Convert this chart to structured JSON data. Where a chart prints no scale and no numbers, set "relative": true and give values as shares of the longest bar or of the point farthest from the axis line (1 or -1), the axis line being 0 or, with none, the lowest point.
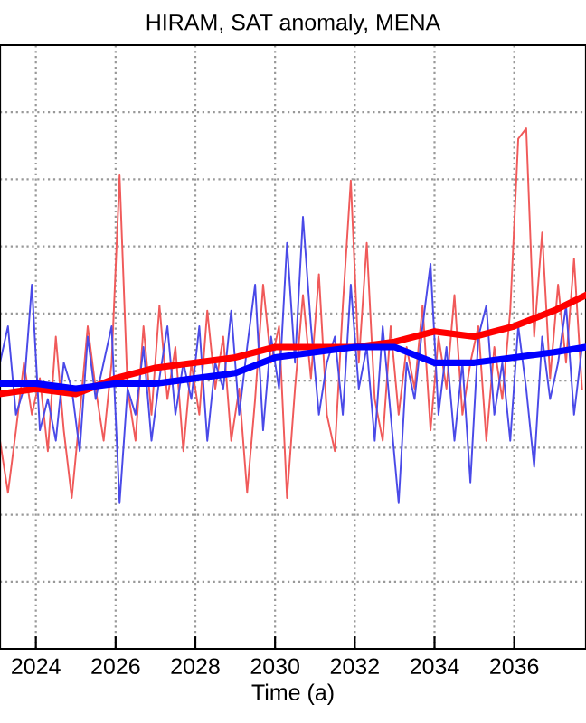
{
  "chart_data": {
    "type": "line",
    "title": "HIRAM, SAT anomaly, MENA",
    "xlabel": "Time (a)",
    "relative": true,
    "grid": true,
    "legend": false,
    "xlim": [
      2023.1,
      2037.8
    ],
    "xticks": [
      2024,
      2026,
      2028,
      2030,
      2032,
      2034,
      2036
    ],
    "x": [
      2023.1,
      2023.3,
      2023.5,
      2023.7,
      2023.9,
      2024.1,
      2024.3,
      2024.5,
      2024.7,
      2024.9,
      2025.1,
      2025.3,
      2025.5,
      2025.7,
      2025.9,
      2026.1,
      2026.3,
      2026.5,
      2026.7,
      2026.9,
      2027.1,
      2027.3,
      2027.5,
      2027.7,
      2027.9,
      2028.1,
      2028.3,
      2028.5,
      2028.7,
      2028.9,
      2029.1,
      2029.3,
      2029.5,
      2029.7,
      2029.9,
      2030.1,
      2030.3,
      2030.5,
      2030.7,
      2030.9,
      2031.1,
      2031.3,
      2031.5,
      2031.7,
      2031.9,
      2032.1,
      2032.3,
      2032.5,
      2032.7,
      2032.9,
      2033.1,
      2033.3,
      2033.5,
      2033.7,
      2033.9,
      2034.1,
      2034.3,
      2034.5,
      2034.7,
      2034.9,
      2035.1,
      2035.3,
      2035.5,
      2035.7,
      2035.9,
      2036.1,
      2036.3,
      2036.5,
      2036.7,
      2036.9,
      2037.1,
      2037.3,
      2037.5,
      2037.7
    ],
    "series": [
      {
        "color": "#f05a5a",
        "values": [
          0.4,
          0.3,
          0.42,
          0.55,
          0.45,
          0.52,
          0.38,
          0.6,
          0.42,
          0.29,
          0.45,
          0.62,
          0.5,
          0.4,
          0.55,
          0.91,
          0.5,
          0.4,
          0.62,
          0.45,
          0.66,
          0.48,
          0.58,
          0.38,
          0.55,
          0.45,
          0.65,
          0.5,
          0.6,
          0.4,
          0.5,
          0.3,
          0.48,
          0.7,
          0.55,
          0.62,
          0.29,
          0.5,
          0.68,
          0.52,
          0.72,
          0.45,
          0.38,
          0.66,
          0.9,
          0.55,
          0.78,
          0.48,
          0.4,
          0.62,
          0.45,
          0.58,
          0.5,
          0.66,
          0.42,
          0.6,
          0.5,
          0.68,
          0.45,
          0.55,
          0.62,
          0.4,
          0.58,
          0.48,
          0.65,
          0.98,
          1.0,
          0.6,
          0.8,
          0.52,
          0.7,
          0.55,
          0.75,
          0.5
        ]
      },
      {
        "color": "#4a4ae8",
        "values": [
          0.55,
          0.62,
          0.45,
          0.5,
          0.7,
          0.42,
          0.48,
          0.4,
          0.55,
          0.5,
          0.38,
          0.6,
          0.48,
          0.55,
          0.62,
          0.28,
          0.5,
          0.45,
          0.58,
          0.4,
          0.52,
          0.62,
          0.45,
          0.55,
          0.48,
          0.62,
          0.4,
          0.55,
          0.5,
          0.65,
          0.45,
          0.58,
          0.7,
          0.42,
          0.6,
          0.5,
          0.78,
          0.55,
          0.83,
          0.62,
          0.45,
          0.55,
          0.6,
          0.45,
          0.7,
          0.5,
          0.58,
          0.4,
          0.62,
          0.45,
          0.28,
          0.55,
          0.48,
          0.62,
          0.74,
          0.45,
          0.58,
          0.4,
          0.55,
          0.32,
          0.6,
          0.66,
          0.45,
          0.55,
          0.4,
          0.62,
          0.5,
          0.35,
          0.6,
          0.48,
          0.55,
          0.66,
          0.45,
          0.58
        ]
      },
      {
        "color": "#ff0000",
        "x": [
          2023.1,
          2024,
          2025,
          2026,
          2027,
          2028,
          2029,
          2030,
          2031,
          2032,
          2033,
          2034,
          2035,
          2036,
          2037,
          2037.8
        ],
        "values": [
          0.49,
          0.5,
          0.49,
          0.52,
          0.54,
          0.55,
          0.56,
          0.58,
          0.58,
          0.58,
          0.59,
          0.61,
          0.6,
          0.62,
          0.65,
          0.68
        ]
      },
      {
        "color": "#0000ff",
        "x": [
          2023.1,
          2024,
          2025,
          2026,
          2027,
          2028,
          2029,
          2030,
          2031,
          2032,
          2033,
          2034,
          2035,
          2036,
          2037,
          2037.8
        ],
        "values": [
          0.51,
          0.51,
          0.5,
          0.51,
          0.51,
          0.52,
          0.53,
          0.56,
          0.57,
          0.58,
          0.58,
          0.55,
          0.55,
          0.56,
          0.57,
          0.58
        ]
      }
    ]
  }
}
